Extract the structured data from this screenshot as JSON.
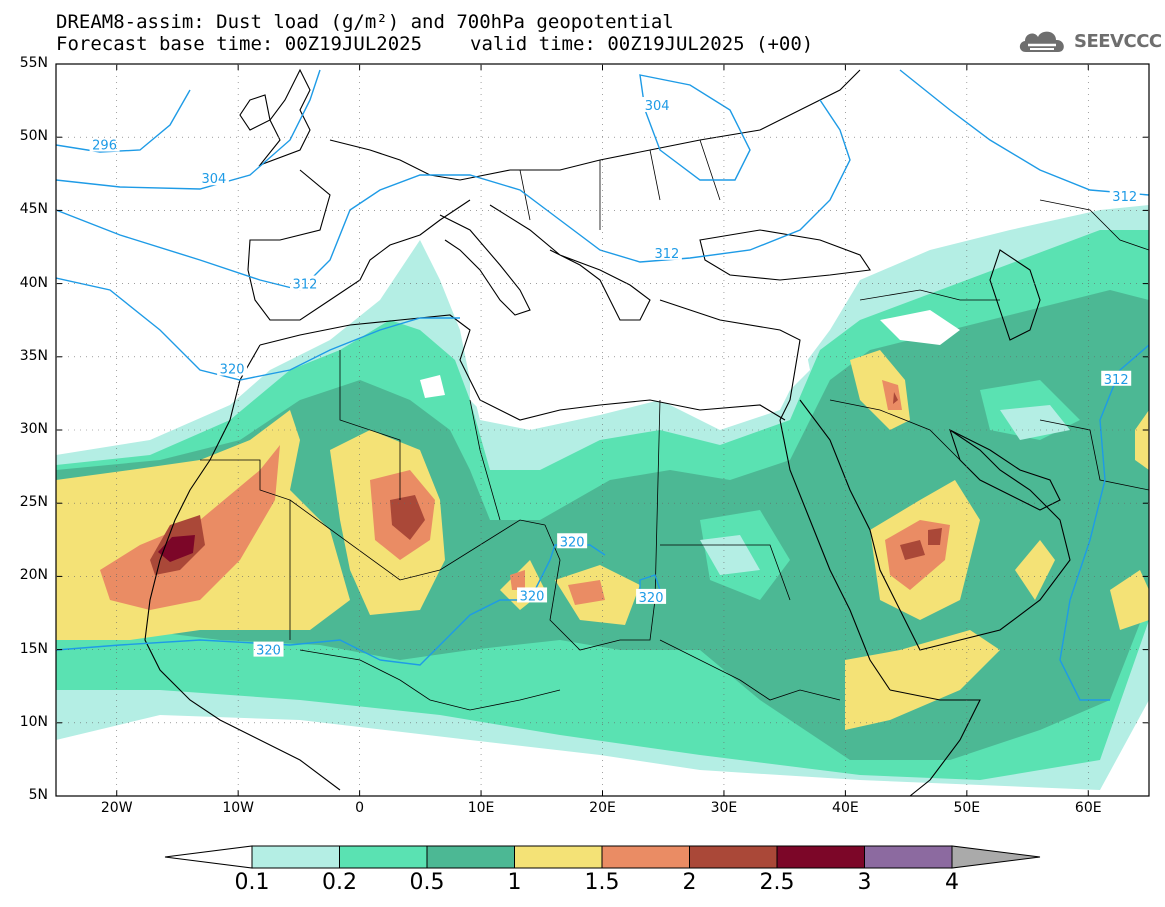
{
  "title": {
    "line1": "DREAM8-assim: Dust load (g/m²) and 700hPa geopotential",
    "base_time": "Forecast base time: 00Z19JUL2025",
    "valid_time": "valid time: 00Z19JUL2025 (+00)"
  },
  "logo": {
    "text": "SEEVCCC",
    "icon": "cloud-icon",
    "color": "#6e6e6e"
  },
  "map": {
    "lon_range": [
      -25,
      65
    ],
    "lat_range": [
      5,
      55
    ],
    "lat_ticks": [
      "55N",
      "50N",
      "45N",
      "40N",
      "35N",
      "30N",
      "25N",
      "20N",
      "15N",
      "10N",
      "5N"
    ],
    "lon_ticks": [
      "20W",
      "10W",
      "0",
      "10E",
      "20E",
      "30E",
      "40E",
      "50E",
      "60E"
    ],
    "contour_color": "#1e9be6",
    "contour_labels": [
      {
        "text": "296",
        "lon": -21,
        "lat": 49.5
      },
      {
        "text": "304",
        "lon": -12,
        "lat": 47.2
      },
      {
        "text": "312",
        "lon": -4.5,
        "lat": 40.0
      },
      {
        "text": "320",
        "lon": -10.5,
        "lat": 34.2
      },
      {
        "text": "320",
        "lon": -7.5,
        "lat": 15.0
      },
      {
        "text": "320",
        "lon": 14.2,
        "lat": 18.7
      },
      {
        "text": "320",
        "lon": 17.5,
        "lat": 22.4
      },
      {
        "text": "320",
        "lon": 24.0,
        "lat": 18.6
      },
      {
        "text": "304",
        "lon": 24.5,
        "lat": 52.2
      },
      {
        "text": "312",
        "lon": 25.3,
        "lat": 42.1
      },
      {
        "text": "312",
        "lon": 63.0,
        "lat": 46.0
      },
      {
        "text": "312",
        "lon": 62.3,
        "lat": 33.5
      }
    ]
  },
  "colorbar": {
    "labels": [
      "0.1",
      "0.2",
      "0.5",
      "1",
      "1.5",
      "2",
      "2.5",
      "3",
      "4"
    ],
    "colors": [
      "#ffffff",
      "#b4eee4",
      "#5ae2b2",
      "#4cb894",
      "#f4e276",
      "#ea8c64",
      "#aa4838",
      "#7c0628",
      "#8c6aa0",
      "#aaaaaa"
    ]
  }
}
